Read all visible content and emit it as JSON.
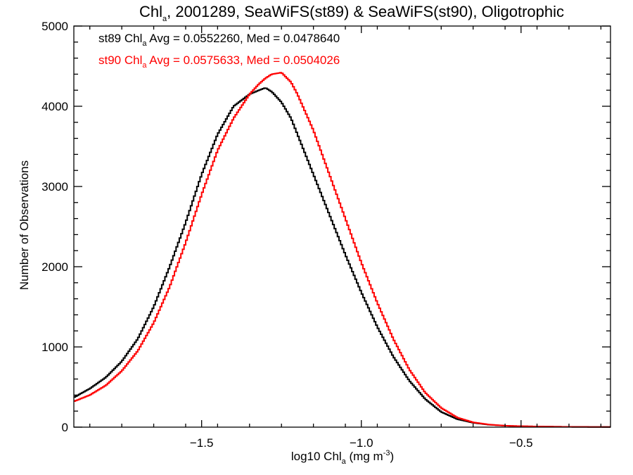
{
  "chart_data": {
    "type": "line",
    "style": "histogram-step",
    "title": "Chl",
    "title_sub": "a",
    "title_rest": ", 2001289, SeaWiFS(st89) & SeaWiFS(st90), Oligotrophic",
    "xlabel": "log10 Chl",
    "xlabel_sub": "a",
    "xlabel_rest": " (mg m",
    "xlabel_sup": "-3",
    "xlabel_end": ")",
    "ylabel": "Number of Observations",
    "xlim": [
      -1.9,
      -0.22
    ],
    "ylim": [
      0,
      5000
    ],
    "x_ticks": [
      {
        "value": -1.5,
        "label": "−1.5"
      },
      {
        "value": -1.0,
        "label": "−1.0"
      },
      {
        "value": -0.5,
        "label": "−0.5"
      }
    ],
    "y_ticks": [
      {
        "value": 0,
        "label": "0"
      },
      {
        "value": 1000,
        "label": "1000"
      },
      {
        "value": 2000,
        "label": "2000"
      },
      {
        "value": 3000,
        "label": "3000"
      },
      {
        "value": 4000,
        "label": "4000"
      },
      {
        "value": 5000,
        "label": "5000"
      }
    ],
    "grid": false,
    "series": [
      {
        "name": "st89",
        "color": "#000000",
        "annotation_pre": "st89 Chl",
        "annotation_sub": "a",
        "annotation_post": " Avg = 0.0552260, Med = 0.0478640",
        "x": [
          -1.9,
          -1.85,
          -1.8,
          -1.75,
          -1.7,
          -1.65,
          -1.6,
          -1.55,
          -1.5,
          -1.45,
          -1.4,
          -1.35,
          -1.32,
          -1.3,
          -1.28,
          -1.25,
          -1.22,
          -1.2,
          -1.15,
          -1.1,
          -1.05,
          -1.0,
          -0.95,
          -0.9,
          -0.85,
          -0.8,
          -0.75,
          -0.7,
          -0.65,
          -0.6,
          -0.55,
          -0.5,
          -0.45,
          -0.4,
          -0.35,
          -0.3,
          -0.25,
          -0.22
        ],
        "y": [
          370,
          480,
          620,
          820,
          1100,
          1500,
          2000,
          2550,
          3150,
          3650,
          4000,
          4150,
          4200,
          4230,
          4180,
          4050,
          3850,
          3650,
          3150,
          2650,
          2150,
          1680,
          1250,
          880,
          580,
          350,
          190,
          100,
          55,
          30,
          18,
          12,
          8,
          6,
          4,
          3,
          2,
          2
        ]
      },
      {
        "name": "st90",
        "color": "#ff0000",
        "annotation_pre": "st90 Chl",
        "annotation_sub": "a",
        "annotation_post": " Avg = 0.0575633, Med = 0.0504026",
        "x": [
          -1.9,
          -1.85,
          -1.8,
          -1.75,
          -1.7,
          -1.65,
          -1.6,
          -1.55,
          -1.5,
          -1.45,
          -1.4,
          -1.35,
          -1.32,
          -1.3,
          -1.28,
          -1.25,
          -1.22,
          -1.2,
          -1.15,
          -1.1,
          -1.05,
          -1.0,
          -0.95,
          -0.9,
          -0.85,
          -0.8,
          -0.75,
          -0.7,
          -0.65,
          -0.6,
          -0.55,
          -0.5,
          -0.45,
          -0.4,
          -0.35,
          -0.3,
          -0.25,
          -0.22
        ],
        "y": [
          320,
          400,
          520,
          700,
          950,
          1300,
          1750,
          2300,
          2900,
          3450,
          3850,
          4150,
          4280,
          4350,
          4400,
          4420,
          4300,
          4150,
          3700,
          3150,
          2600,
          2050,
          1550,
          1100,
          720,
          430,
          240,
          120,
          60,
          32,
          18,
          12,
          8,
          6,
          4,
          3,
          2,
          2
        ]
      }
    ]
  }
}
